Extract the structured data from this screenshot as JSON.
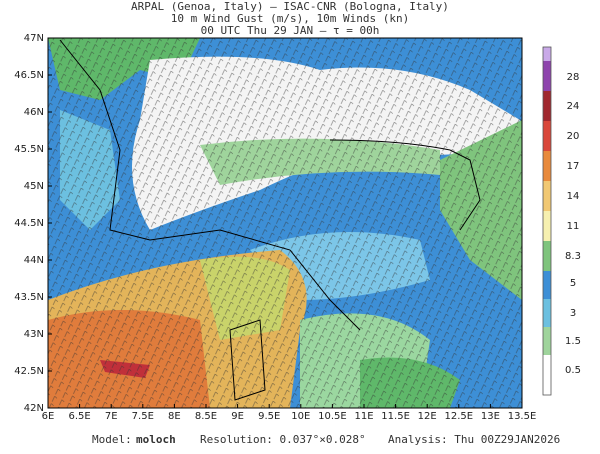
{
  "header": {
    "lines": [
      "ARPAL (Genoa, Italy)  –  ISAC-CNR (Bologna, Italy)",
      "10 m Wind Gust (m/s), 10m Winds (kn)",
      "00 UTC Thu 29 JAN  –  τ = 00h"
    ]
  },
  "map": {
    "lat_labels": [
      "47N",
      "46.5N",
      "46N",
      "45.5N",
      "45N",
      "44.5N",
      "44N",
      "43.5N",
      "43N",
      "42.5N",
      "42N"
    ],
    "lon_labels": [
      "6E",
      "6.5E",
      "7E",
      "7.5E",
      "8E",
      "8.5E",
      "9E",
      "9.5E",
      "10E",
      "10.5E",
      "11E",
      "11.5E",
      "12E",
      "12.5E",
      "13E",
      "13.5E"
    ]
  },
  "colorbar": {
    "labels": [
      28,
      24,
      20,
      17,
      14,
      11,
      8.3,
      5,
      3,
      1.5,
      0.5
    ]
  },
  "footer": {
    "model_label": "Model:",
    "model": "moloch",
    "resolution": "Resolution: 0.037°×0.028°",
    "analysis": "Analysis: Thu 00Z29JAN2026"
  }
}
